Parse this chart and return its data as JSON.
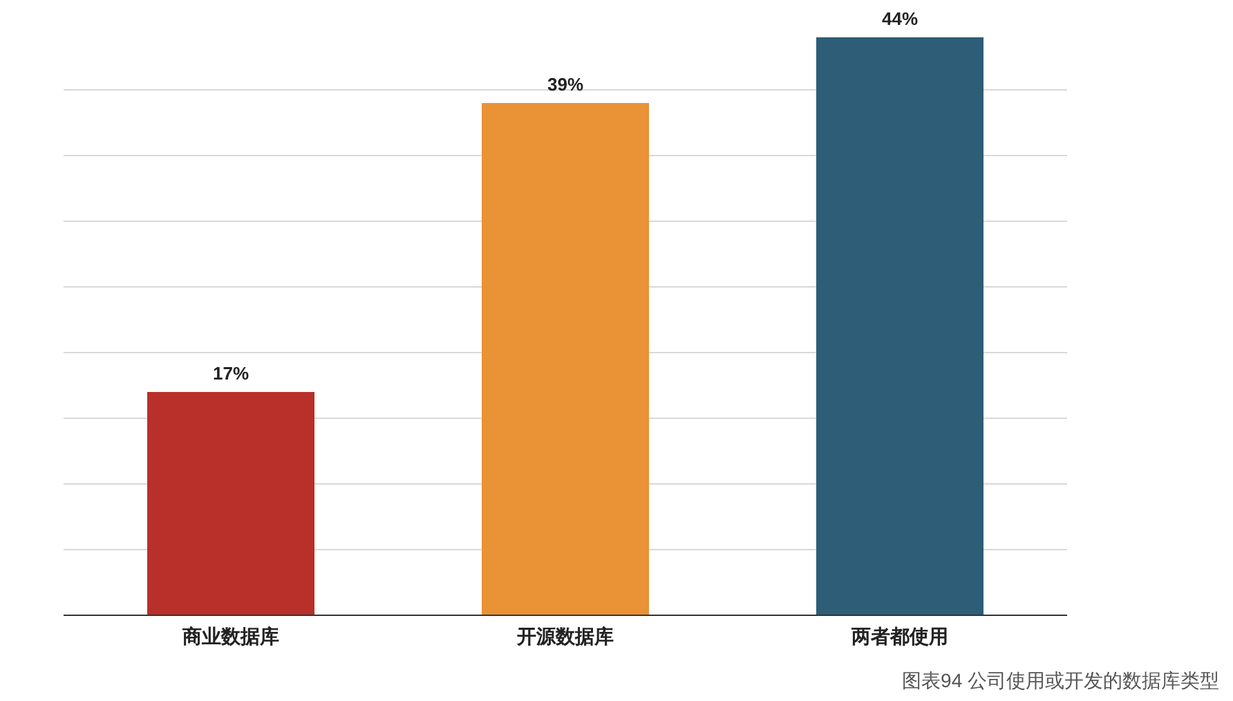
{
  "chart_data": {
    "type": "bar",
    "categories": [
      "商业数据库",
      "开源数据库",
      "两者都使用"
    ],
    "values": [
      17,
      39,
      44
    ],
    "colors": [
      "#b83029",
      "#ea9236",
      "#2e5d78"
    ],
    "ylim": [
      0,
      44
    ],
    "yticks": [
      0,
      {
        "value": 5,
        "label": null
      },
      {
        "value": 10,
        "label": null
      },
      {
        "value": 15,
        "label": null
      },
      {
        "value": 20,
        "label": null
      },
      {
        "value": 25,
        "label": null
      },
      {
        "value": 30,
        "label": null
      },
      {
        "value": 35,
        "label": null
      },
      {
        "value": 40,
        "label": null
      }
    ],
    "tick_labels": "x",
    "grid": "y",
    "data_labels": true,
    "value_labels": [
      "17%",
      "39%",
      "44%"
    ],
    "annotations": [
      "图表94 公司使用或开发的数据库类型"
    ]
  }
}
